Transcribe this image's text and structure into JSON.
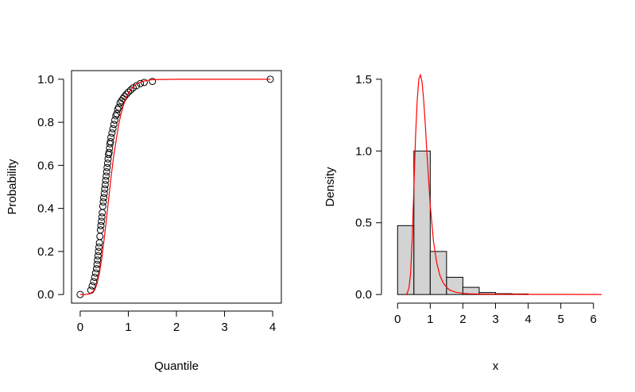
{
  "chart_data": [
    {
      "type": "scatter",
      "xlabel": "Quantile",
      "ylabel": "Probability",
      "xlim": [
        -0.18,
        4.18
      ],
      "ylim": [
        -0.04,
        1.04
      ],
      "xticks": [
        "0",
        "1",
        "2",
        "3",
        "4"
      ],
      "yticks": [
        "0.0",
        "0.2",
        "0.4",
        "0.6",
        "0.8",
        "1.0"
      ],
      "xtick_values": [
        0,
        1,
        2,
        3,
        4
      ],
      "ytick_values": [
        0,
        0.2,
        0.4,
        0.6,
        0.8,
        1.0
      ],
      "box": true,
      "series": [
        {
          "kind": "points",
          "color": "#000000",
          "x": [
            0.0,
            0.22,
            0.25,
            0.28,
            0.3,
            0.32,
            0.34,
            0.35,
            0.36,
            0.37,
            0.38,
            0.39,
            0.4,
            0.41,
            0.42,
            0.43,
            0.44,
            0.45,
            0.46,
            0.47,
            0.48,
            0.49,
            0.5,
            0.51,
            0.52,
            0.53,
            0.54,
            0.55,
            0.56,
            0.57,
            0.58,
            0.59,
            0.6,
            0.61,
            0.62,
            0.63,
            0.64,
            0.66,
            0.68,
            0.7,
            0.72,
            0.74,
            0.76,
            0.78,
            0.8,
            0.83,
            0.86,
            0.89,
            0.92,
            0.96,
            1.0,
            1.05,
            1.1,
            1.17,
            1.25,
            1.33,
            1.5,
            3.95
          ],
          "y": [
            0.0,
            0.02,
            0.04,
            0.06,
            0.08,
            0.1,
            0.12,
            0.14,
            0.16,
            0.18,
            0.2,
            0.22,
            0.24,
            0.27,
            0.3,
            0.32,
            0.34,
            0.36,
            0.38,
            0.41,
            0.43,
            0.45,
            0.47,
            0.49,
            0.51,
            0.53,
            0.55,
            0.57,
            0.59,
            0.61,
            0.63,
            0.65,
            0.66,
            0.68,
            0.7,
            0.71,
            0.73,
            0.75,
            0.77,
            0.79,
            0.81,
            0.83,
            0.84,
            0.86,
            0.87,
            0.89,
            0.9,
            0.91,
            0.92,
            0.93,
            0.94,
            0.95,
            0.96,
            0.97,
            0.98,
            0.985,
            0.99,
            1.0
          ]
        },
        {
          "kind": "line",
          "color": "#ff0000",
          "x": [
            0.0,
            0.1,
            0.2,
            0.3,
            0.35,
            0.4,
            0.45,
            0.5,
            0.55,
            0.6,
            0.65,
            0.7,
            0.75,
            0.8,
            0.85,
            0.9,
            0.95,
            1.0,
            1.05,
            1.1,
            1.15,
            1.2,
            1.3,
            1.4,
            1.5,
            2.0,
            3.0,
            3.95
          ],
          "y": [
            0.0,
            0.0,
            0.003,
            0.02,
            0.05,
            0.1,
            0.17,
            0.26,
            0.36,
            0.46,
            0.56,
            0.65,
            0.72,
            0.79,
            0.84,
            0.88,
            0.91,
            0.935,
            0.95,
            0.965,
            0.975,
            0.982,
            0.99,
            0.995,
            0.998,
            1.0,
            1.0,
            1.0
          ]
        }
      ]
    },
    {
      "type": "bar",
      "xlabel": "x",
      "ylabel": "Density",
      "xlim": [
        -0.25,
        6.25
      ],
      "ylim": [
        -0.06,
        1.56
      ],
      "xticks": [
        "0",
        "1",
        "2",
        "3",
        "4",
        "5",
        "6"
      ],
      "yticks": [
        "0.0",
        "0.5",
        "1.0",
        "1.5"
      ],
      "xtick_values": [
        0,
        1,
        2,
        3,
        4,
        5,
        6
      ],
      "ytick_values": [
        0,
        0.5,
        1.0,
        1.5
      ],
      "box": false,
      "bar_color": "#d3d3d3",
      "bins": [
        {
          "from": 0.0,
          "to": 0.5,
          "value": 0.48
        },
        {
          "from": 0.5,
          "to": 1.0,
          "value": 1.0
        },
        {
          "from": 1.0,
          "to": 1.5,
          "value": 0.3
        },
        {
          "from": 1.5,
          "to": 2.0,
          "value": 0.12
        },
        {
          "from": 2.0,
          "to": 2.5,
          "value": 0.05
        },
        {
          "from": 2.5,
          "to": 3.0,
          "value": 0.014
        },
        {
          "from": 3.0,
          "to": 3.5,
          "value": 0.006
        },
        {
          "from": 3.5,
          "to": 4.0,
          "value": 0.004
        }
      ],
      "density_curve": {
        "color": "#ff0000",
        "x": [
          0.25,
          0.3,
          0.35,
          0.4,
          0.45,
          0.5,
          0.55,
          0.6,
          0.65,
          0.7,
          0.75,
          0.8,
          0.85,
          0.9,
          0.95,
          1.0,
          1.1,
          1.2,
          1.3,
          1.4,
          1.5,
          1.6,
          1.8,
          2.0,
          2.2,
          2.5,
          3.0,
          4.0,
          5.0,
          6.25
        ],
        "y": [
          0.0,
          0.01,
          0.05,
          0.15,
          0.4,
          0.75,
          1.1,
          1.35,
          1.5,
          1.53,
          1.48,
          1.35,
          1.18,
          0.98,
          0.8,
          0.62,
          0.37,
          0.22,
          0.13,
          0.08,
          0.05,
          0.03,
          0.015,
          0.008,
          0.005,
          0.003,
          0.002,
          0.001,
          0.001,
          0.0
        ]
      }
    }
  ]
}
